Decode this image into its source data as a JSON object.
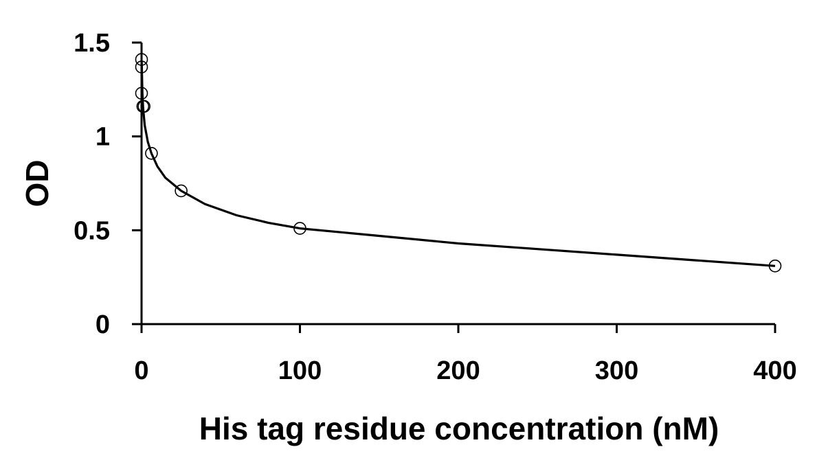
{
  "chart_data": {
    "type": "scatter",
    "title": "",
    "xlabel": "His tag residue concentration (nM)",
    "ylabel": "OD",
    "xlim": [
      0,
      400
    ],
    "ylim": [
      0,
      1.5
    ],
    "x_ticks": [
      0,
      100,
      200,
      300,
      400
    ],
    "x_tick_labels": [
      "0",
      "100",
      "200",
      "300",
      "400"
    ],
    "y_ticks": [
      0,
      0.5,
      1,
      1.5
    ],
    "y_tick_labels": [
      "0",
      "0.5",
      "1",
      "1.5"
    ],
    "grid": false,
    "legend": "none",
    "series": [
      {
        "marker": "open-circle",
        "x": [
          0,
          0,
          0,
          0.8,
          1.6,
          6.25,
          25,
          100,
          400
        ],
        "y": [
          1.41,
          1.37,
          1.23,
          1.16,
          1.16,
          0.91,
          0.71,
          0.51,
          0.31
        ]
      }
    ],
    "fit_curve": {
      "x": [
        0.1,
        0.5,
        1,
        2,
        4,
        6.25,
        10,
        15,
        25,
        40,
        60,
        80,
        100,
        150,
        200,
        250,
        300,
        350,
        400
      ],
      "y": [
        1.4,
        1.23,
        1.15,
        1.06,
        0.97,
        0.91,
        0.84,
        0.78,
        0.71,
        0.64,
        0.58,
        0.54,
        0.51,
        0.47,
        0.43,
        0.4,
        0.37,
        0.34,
        0.31
      ]
    },
    "colors": {
      "axis": "#000000",
      "marker": "#000000",
      "curve": "#000000"
    }
  }
}
